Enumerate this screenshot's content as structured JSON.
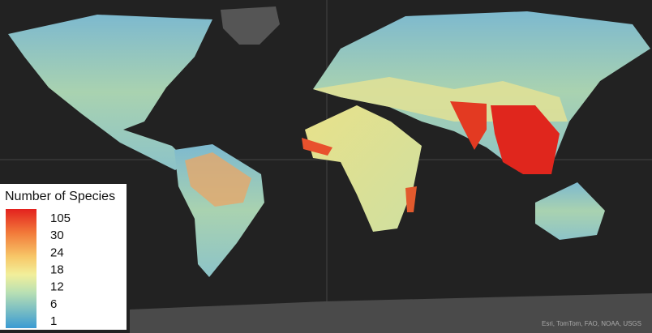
{
  "legend": {
    "title": "Number of Species",
    "labels": [
      105,
      30,
      24,
      18,
      12,
      6,
      1
    ]
  },
  "attribution": "Esri, TomTom, FAO, NOAA, USGS"
}
